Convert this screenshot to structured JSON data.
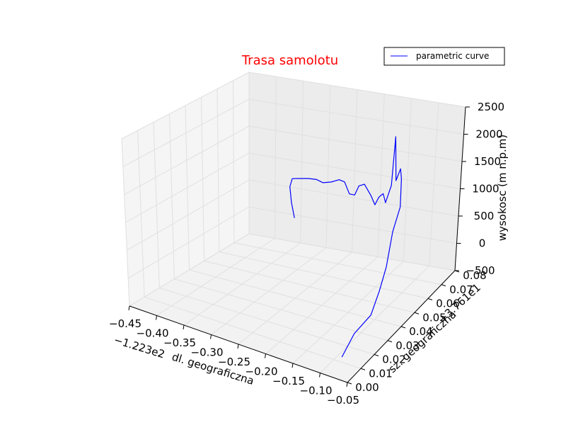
{
  "colors": {
    "title": "#ff0000",
    "line": "#0000ff",
    "pane": "#f2f2f2",
    "grid": "#e6e6e6"
  },
  "chart_data": {
    "type": "line3d",
    "title": "Trasa samolotu",
    "xlabel": "dl. geograficzna",
    "ylabel": "sz. geograficzna",
    "zlabel": "wysokosc (m n.p.m)",
    "x_offset_label": "−1.223e2",
    "y_offset_label": "+3.761e1",
    "xlim": [
      -0.45,
      -0.05
    ],
    "ylim": [
      0.0,
      0.08
    ],
    "zlim": [
      -500,
      2500
    ],
    "x_ticks": [
      "−0.45",
      "−0.40",
      "−0.35",
      "−0.30",
      "−0.25",
      "−0.20",
      "−0.15",
      "−0.10",
      "−0.05"
    ],
    "y_ticks": [
      "0.00",
      "0.01",
      "0.02",
      "0.03",
      "0.04",
      "0.05",
      "0.06",
      "0.07",
      "0.08"
    ],
    "z_ticks": [
      "−500",
      "0",
      "500",
      "1000",
      "1500",
      "2000",
      "2500"
    ],
    "grid": true,
    "legend": {
      "position": "top-right",
      "entries": [
        "parametric curve"
      ]
    },
    "series": [
      {
        "name": "parametric curve",
        "points": [
          [
            -0.34,
            0.072,
            130
          ],
          [
            -0.335,
            0.068,
            500
          ],
          [
            -0.33,
            0.065,
            850
          ],
          [
            -0.32,
            0.063,
            1050
          ],
          [
            -0.305,
            0.062,
            1100
          ],
          [
            -0.29,
            0.063,
            1110
          ],
          [
            -0.275,
            0.063,
            1120
          ],
          [
            -0.26,
            0.062,
            1110
          ],
          [
            -0.245,
            0.062,
            1150
          ],
          [
            -0.23,
            0.062,
            1220
          ],
          [
            -0.22,
            0.062,
            1200
          ],
          [
            -0.205,
            0.06,
            1050
          ],
          [
            -0.19,
            0.058,
            1100
          ],
          [
            -0.18,
            0.057,
            1300
          ],
          [
            -0.17,
            0.057,
            1350
          ],
          [
            -0.16,
            0.058,
            1150
          ],
          [
            -0.152,
            0.058,
            1000
          ],
          [
            -0.145,
            0.058,
            1150
          ],
          [
            -0.14,
            0.059,
            1200
          ],
          [
            -0.135,
            0.059,
            1050
          ],
          [
            -0.128,
            0.06,
            1350
          ],
          [
            -0.126,
            0.061,
            2200
          ],
          [
            -0.125,
            0.062,
            1400
          ],
          [
            -0.12,
            0.063,
            1600
          ],
          [
            -0.115,
            0.062,
            1450
          ],
          [
            -0.11,
            0.06,
            1200
          ],
          [
            -0.105,
            0.058,
            1050
          ],
          [
            -0.1,
            0.056,
            1100
          ],
          [
            -0.097,
            0.05,
            800
          ],
          [
            -0.094,
            0.045,
            300
          ],
          [
            -0.093,
            0.04,
            0
          ],
          [
            -0.095,
            0.035,
            -300
          ],
          [
            -0.1,
            0.025,
            -400
          ],
          [
            -0.105,
            0.018,
            -650
          ]
        ]
      }
    ]
  }
}
